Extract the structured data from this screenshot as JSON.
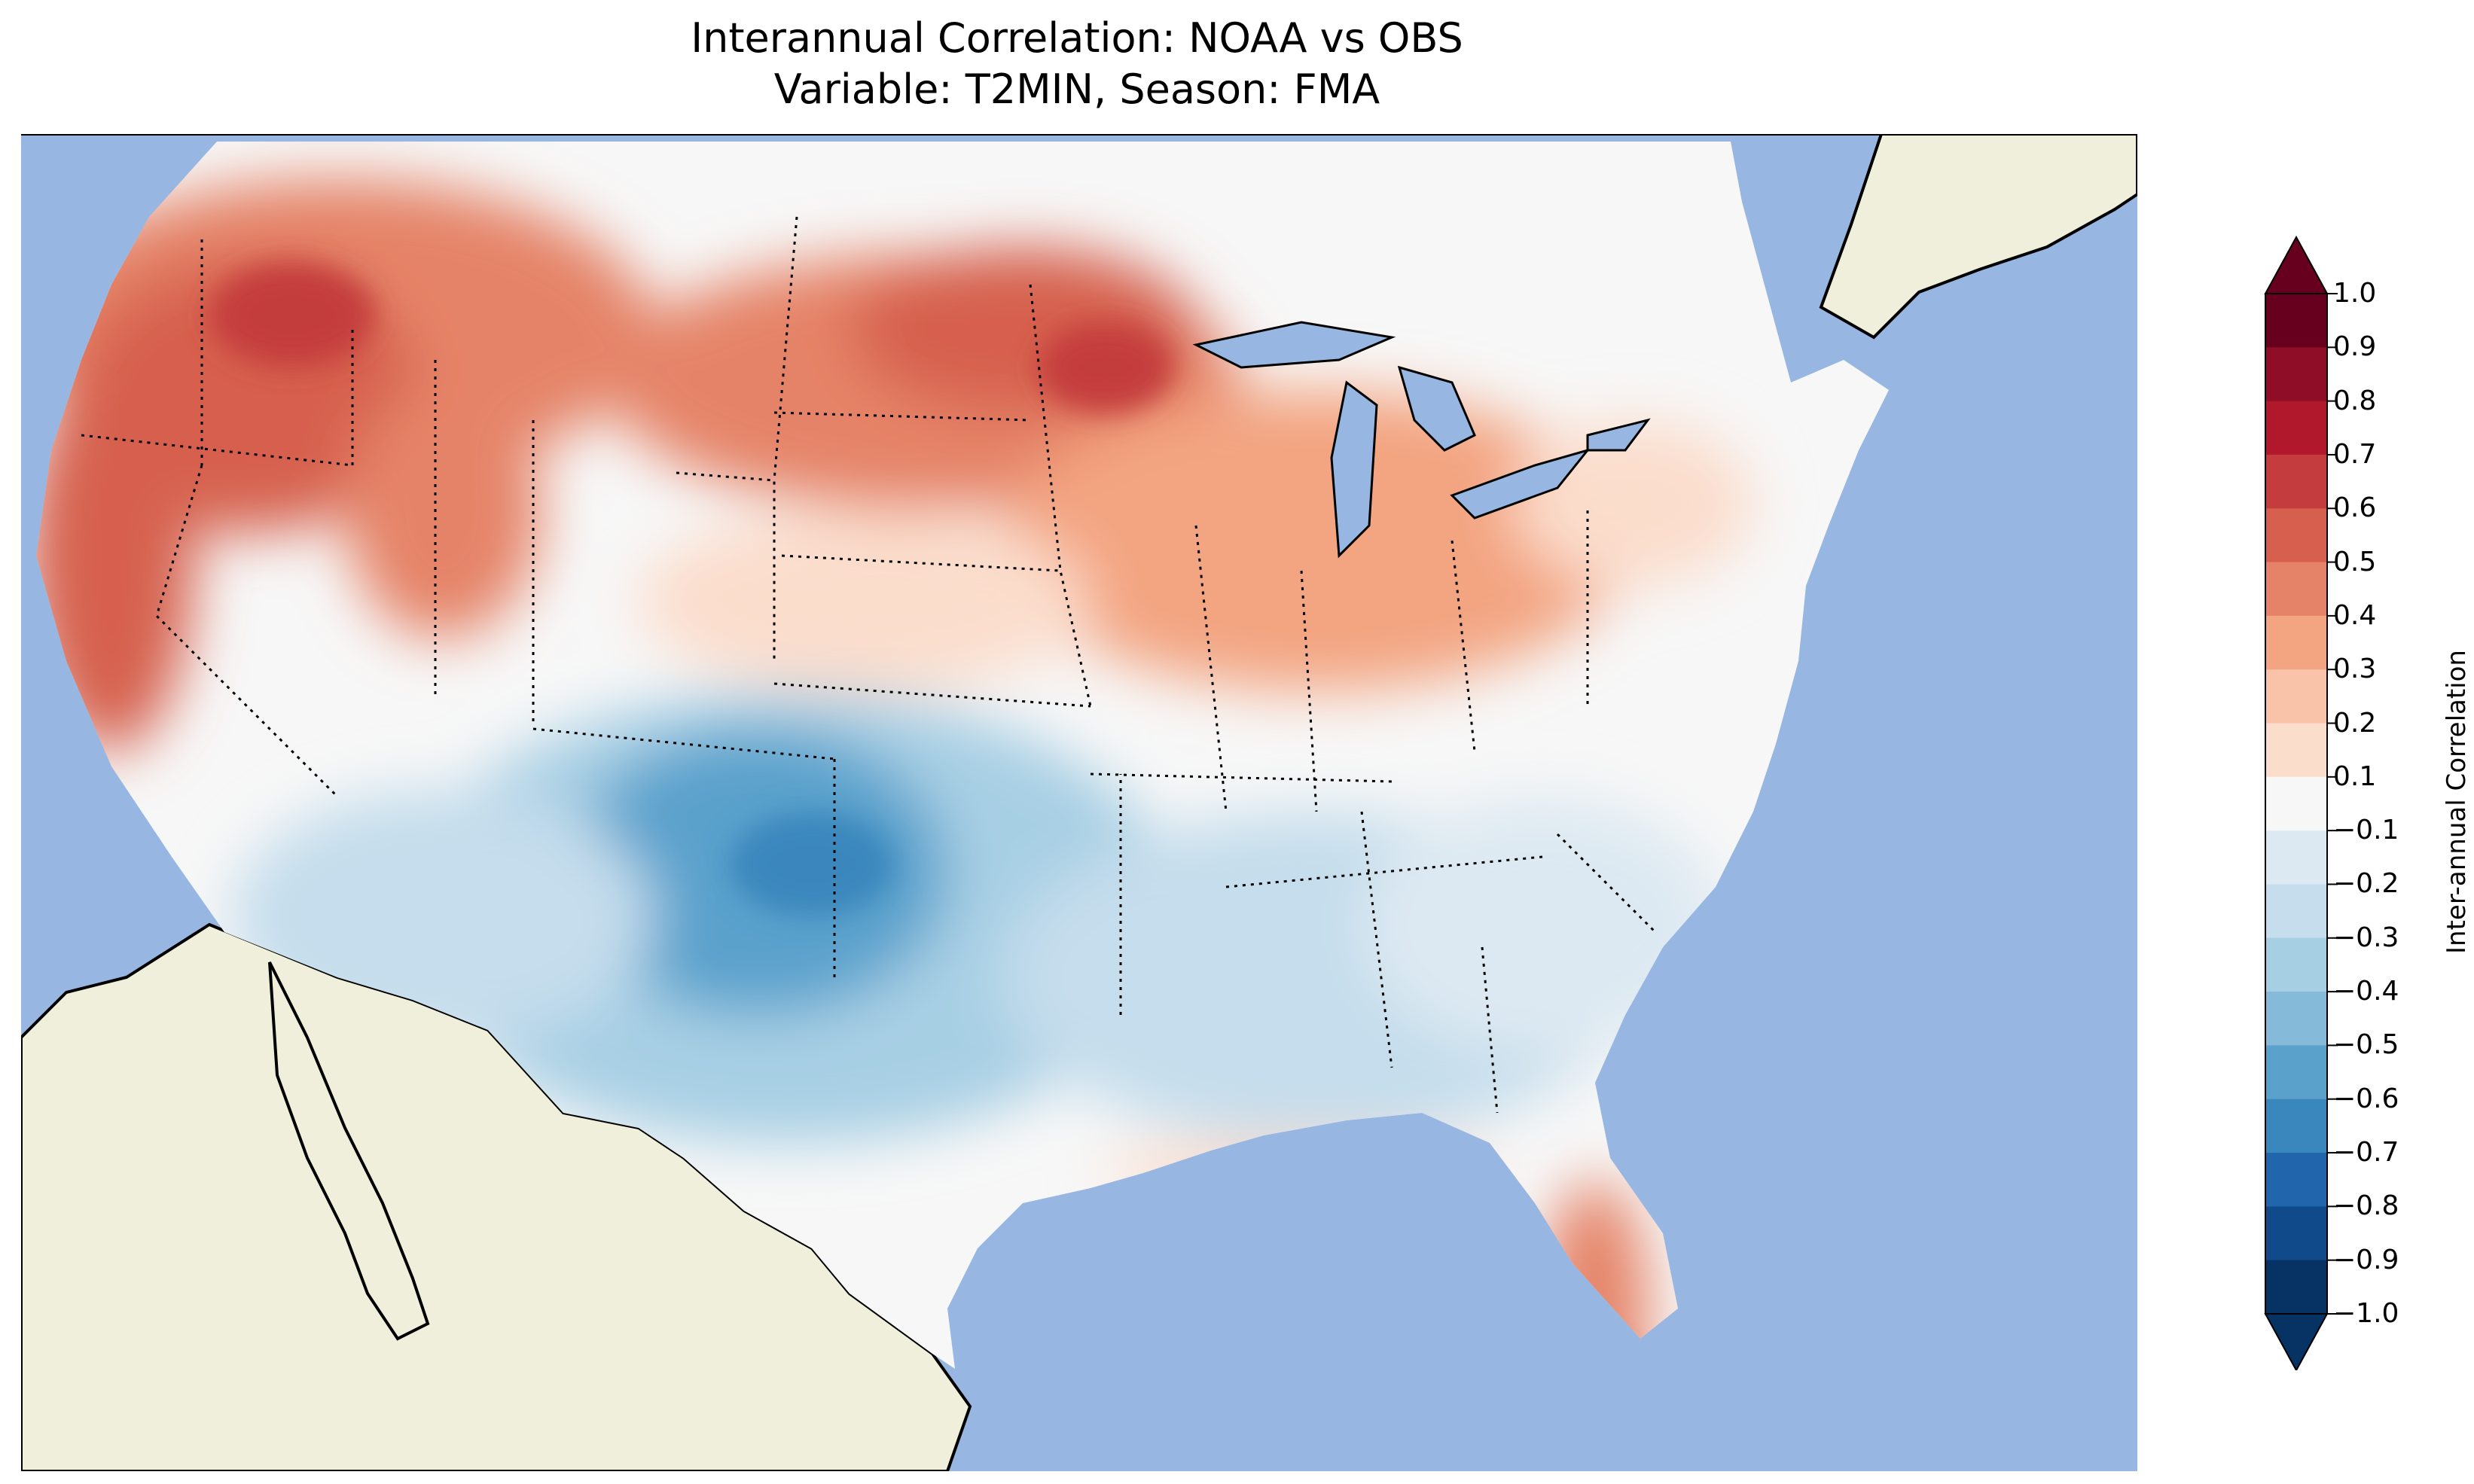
{
  "title_line1": "Interannual Correlation: NOAA vs OBS",
  "title_line2": "Variable: T2MIN, Season: FMA",
  "colorbar": {
    "label": "Inter-annual Correlation",
    "ticks": [
      "1.0",
      "0.9",
      "0.8",
      "0.7",
      "0.6",
      "0.5",
      "0.4",
      "0.3",
      "0.2",
      "0.1",
      "−0.1",
      "−0.2",
      "−0.3",
      "−0.4",
      "−0.5",
      "−0.6",
      "−0.7",
      "−0.8",
      "−0.9",
      "−1.0"
    ],
    "range": [
      -1.0,
      1.0
    ],
    "extend": "both",
    "colors": [
      "#063264",
      "#104a8a",
      "#2166ac",
      "#3a87bd",
      "#5aa1cc",
      "#85bad8",
      "#a7cfe4",
      "#c5ddec",
      "#dde9f2",
      "#f7f7f7",
      "#fbddcc",
      "#f8c3a8",
      "#f3a481",
      "#e58368",
      "#d6604d",
      "#c43c3d",
      "#b2182b",
      "#8f0d26",
      "#67001f"
    ]
  },
  "map": {
    "region": "Contiguous United States",
    "ocean_color": "#97b6e1",
    "land_color": "#efefdb",
    "regional_pattern": [
      {
        "region": "Pacific Northwest / Northern Rockies",
        "correlation": 0.5
      },
      {
        "region": "California coast",
        "correlation": 0.6
      },
      {
        "region": "Northern Plains (ND/MN)",
        "correlation": 0.5
      },
      {
        "region": "Midwest / Great Lakes",
        "correlation": 0.3
      },
      {
        "region": "Southern Rockies / Southern Plains",
        "correlation": -0.5
      },
      {
        "region": "Texas / Gulf states",
        "correlation": -0.3
      },
      {
        "region": "Southeast / Mid-Atlantic",
        "correlation": -0.1
      },
      {
        "region": "Florida",
        "correlation": 0.5
      },
      {
        "region": "Northeast",
        "correlation": 0.1
      }
    ]
  }
}
